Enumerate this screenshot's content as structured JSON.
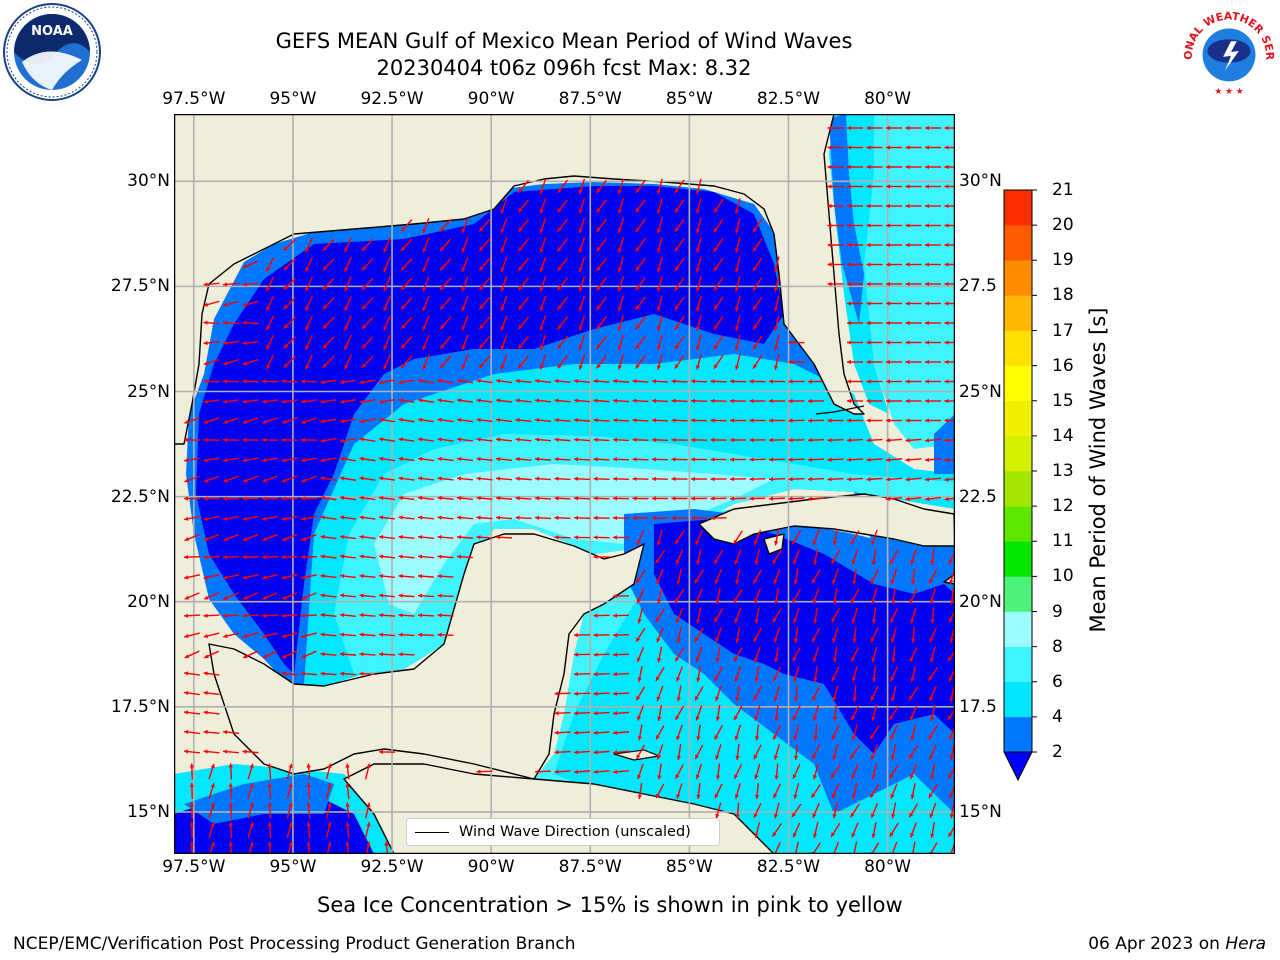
{
  "title": {
    "line1": "GEFS MEAN Gulf of Mexico Mean Period of Wind Waves",
    "line2": "20230404 t06z 096h fcst   Max: 8.32"
  },
  "map": {
    "lon_ticks": [
      "97.5°W",
      "95°W",
      "92.5°W",
      "90°W",
      "87.5°W",
      "85°W",
      "82.5°W",
      "80°W"
    ],
    "lat_ticks_left": [
      "30°N",
      "27.5°N",
      "25°N",
      "22.5°N",
      "20°N",
      "17.5°N",
      "15°N"
    ],
    "lat_ticks_right": [
      "30°N",
      "27.5",
      "25°N",
      "22.5",
      "20°N",
      "17.5",
      "15°N"
    ],
    "lon_range": [
      -98,
      -78.3
    ],
    "lat_range": [
      14,
      31.6
    ],
    "colors": {
      "land": "#efeedb",
      "arrow": "#ff0000",
      "grid": "#b0b0b0"
    }
  },
  "legend": {
    "label": "Wind Wave Direction (unscaled)"
  },
  "colorbar": {
    "label": "Mean Period of Wind Waves [s]",
    "levels": [
      "2",
      "4",
      "6",
      "8",
      "9",
      "10",
      "11",
      "12",
      "13",
      "14",
      "15",
      "16",
      "17",
      "18",
      "19",
      "20",
      "21"
    ],
    "colors": [
      "#0077ff",
      "#00e5ff",
      "#40f4ff",
      "#9cfcff",
      "#4cf27a",
      "#00e600",
      "#5ee600",
      "#a4e600",
      "#d2f000",
      "#f0f000",
      "#ffff00",
      "#ffe000",
      "#ffb700",
      "#ff8c00",
      "#ff5c00",
      "#ff2e00"
    ],
    "under_color": "#0000ff"
  },
  "field_colors": {
    "p2": "#0000f0",
    "p4": "#0077ff",
    "p6": "#00e8ff",
    "p8": "#40f4ff",
    "p9": "#9cfcff"
  },
  "note": "Sea Ice Concentration > 15% is shown in pink to yellow",
  "footer": {
    "left": "NCEP/EMC/Verification Post Processing Product Generation Branch",
    "date": "06 Apr 2023 on ",
    "host": "Hera"
  },
  "logos": {
    "noaa": "NOAA",
    "nws": "NATIONAL WEATHER SERVICE"
  }
}
